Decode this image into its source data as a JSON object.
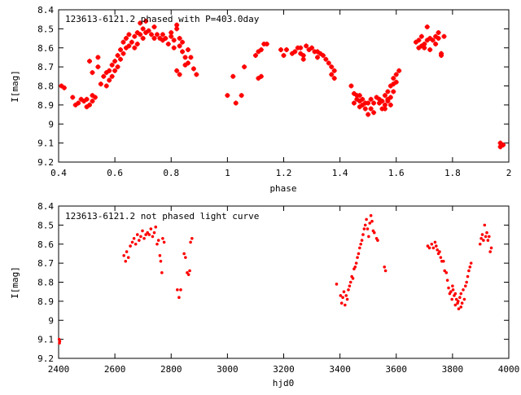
{
  "chart_data": [
    {
      "type": "scatter",
      "annotation": "123613-6121.2 phased with P=403.0day",
      "xlabel": "phase",
      "ylabel": "I[mag]",
      "xlim": [
        0.4,
        2.0
      ],
      "ylim": [
        8.4,
        9.2
      ],
      "y_inverted": true,
      "xticks": [
        "0.4",
        "0.6",
        "0.8",
        "1",
        "1.2",
        "1.4",
        "1.6",
        "1.8",
        "2"
      ],
      "yticks": [
        "8.4",
        "8.5",
        "8.6",
        "8.7",
        "8.8",
        "8.9",
        "9",
        "9.1",
        "9.2"
      ],
      "marker_color": "#ff0000",
      "marker": "plus",
      "points": [
        [
          0.41,
          8.8
        ],
        [
          0.42,
          8.81
        ],
        [
          0.45,
          8.86
        ],
        [
          0.46,
          8.9
        ],
        [
          0.47,
          8.89
        ],
        [
          0.48,
          8.87
        ],
        [
          0.49,
          8.88
        ],
        [
          0.5,
          8.91
        ],
        [
          0.5,
          8.87
        ],
        [
          0.51,
          8.9
        ],
        [
          0.52,
          8.88
        ],
        [
          0.52,
          8.85
        ],
        [
          0.53,
          8.86
        ],
        [
          0.51,
          8.67
        ],
        [
          0.52,
          8.73
        ],
        [
          0.54,
          8.7
        ],
        [
          0.54,
          8.65
        ],
        [
          0.55,
          8.79
        ],
        [
          0.56,
          8.75
        ],
        [
          0.57,
          8.73
        ],
        [
          0.57,
          8.8
        ],
        [
          0.58,
          8.72
        ],
        [
          0.58,
          8.77
        ],
        [
          0.59,
          8.69
        ],
        [
          0.59,
          8.75
        ],
        [
          0.6,
          8.67
        ],
        [
          0.6,
          8.72
        ],
        [
          0.61,
          8.7
        ],
        [
          0.61,
          8.64
        ],
        [
          0.62,
          8.61
        ],
        [
          0.62,
          8.66
        ],
        [
          0.63,
          8.63
        ],
        [
          0.63,
          8.57
        ],
        [
          0.64,
          8.6
        ],
        [
          0.64,
          8.55
        ],
        [
          0.65,
          8.59
        ],
        [
          0.65,
          8.53
        ],
        [
          0.66,
          8.57
        ],
        [
          0.67,
          8.54
        ],
        [
          0.67,
          8.6
        ],
        [
          0.68,
          8.52
        ],
        [
          0.68,
          8.58
        ],
        [
          0.69,
          8.47
        ],
        [
          0.69,
          8.53
        ],
        [
          0.7,
          8.5
        ],
        [
          0.7,
          8.55
        ],
        [
          0.71,
          8.46
        ],
        [
          0.71,
          8.52
        ],
        [
          0.72,
          8.51
        ],
        [
          0.73,
          8.53
        ],
        [
          0.74,
          8.55
        ],
        [
          0.74,
          8.49
        ],
        [
          0.75,
          8.53
        ],
        [
          0.76,
          8.55
        ],
        [
          0.77,
          8.53
        ],
        [
          0.77,
          8.56
        ],
        [
          0.78,
          8.55
        ],
        [
          0.79,
          8.58
        ],
        [
          0.8,
          8.54
        ],
        [
          0.8,
          8.52
        ],
        [
          0.81,
          8.56
        ],
        [
          0.81,
          8.6
        ],
        [
          0.82,
          8.48
        ],
        [
          0.82,
          8.5
        ],
        [
          0.83,
          8.55
        ],
        [
          0.83,
          8.59
        ],
        [
          0.84,
          8.57
        ],
        [
          0.84,
          8.62
        ],
        [
          0.85,
          8.65
        ],
        [
          0.85,
          8.69
        ],
        [
          0.86,
          8.61
        ],
        [
          0.86,
          8.68
        ],
        [
          0.87,
          8.65
        ],
        [
          0.88,
          8.71
        ],
        [
          0.82,
          8.72
        ],
        [
          0.83,
          8.74
        ],
        [
          0.89,
          8.74
        ],
        [
          1.0,
          8.85
        ],
        [
          1.02,
          8.75
        ],
        [
          1.03,
          8.89
        ],
        [
          1.05,
          8.85
        ],
        [
          1.06,
          8.7
        ],
        [
          1.1,
          8.64
        ],
        [
          1.11,
          8.76
        ],
        [
          1.11,
          8.62
        ],
        [
          1.12,
          8.61
        ],
        [
          1.12,
          8.75
        ],
        [
          1.13,
          8.58
        ],
        [
          1.14,
          8.58
        ],
        [
          1.19,
          8.61
        ],
        [
          1.2,
          8.64
        ],
        [
          1.21,
          8.61
        ],
        [
          1.23,
          8.63
        ],
        [
          1.24,
          8.62
        ],
        [
          1.25,
          8.6
        ],
        [
          1.26,
          8.6
        ],
        [
          1.26,
          8.63
        ],
        [
          1.27,
          8.64
        ],
        [
          1.27,
          8.66
        ],
        [
          1.28,
          8.59
        ],
        [
          1.29,
          8.61
        ],
        [
          1.3,
          8.6
        ],
        [
          1.31,
          8.62
        ],
        [
          1.32,
          8.62
        ],
        [
          1.32,
          8.65
        ],
        [
          1.33,
          8.63
        ],
        [
          1.34,
          8.64
        ],
        [
          1.35,
          8.66
        ],
        [
          1.36,
          8.68
        ],
        [
          1.37,
          8.7
        ],
        [
          1.37,
          8.74
        ],
        [
          1.38,
          8.72
        ],
        [
          1.38,
          8.76
        ],
        [
          1.44,
          8.8
        ],
        [
          1.45,
          8.84
        ],
        [
          1.46,
          8.87
        ],
        [
          1.46,
          8.85
        ],
        [
          1.47,
          8.85
        ],
        [
          1.47,
          8.88
        ],
        [
          1.48,
          8.9
        ],
        [
          1.48,
          8.87
        ],
        [
          1.49,
          8.89
        ],
        [
          1.49,
          8.92
        ],
        [
          1.5,
          8.95
        ],
        [
          1.5,
          8.89
        ],
        [
          1.51,
          8.92
        ],
        [
          1.51,
          8.87
        ],
        [
          1.52,
          8.89
        ],
        [
          1.52,
          8.94
        ],
        [
          1.53,
          8.86
        ],
        [
          1.54,
          8.89
        ],
        [
          1.55,
          8.92
        ],
        [
          1.56,
          8.9
        ],
        [
          1.56,
          8.85
        ],
        [
          1.57,
          8.87
        ],
        [
          1.57,
          8.83
        ],
        [
          1.58,
          8.86
        ],
        [
          1.58,
          8.8
        ],
        [
          1.59,
          8.79
        ],
        [
          1.59,
          8.76
        ],
        [
          1.6,
          8.78
        ],
        [
          1.6,
          8.74
        ],
        [
          1.61,
          8.72
        ],
        [
          1.55,
          8.88
        ],
        [
          1.54,
          8.87
        ],
        [
          1.45,
          8.89
        ],
        [
          1.47,
          8.91
        ],
        [
          1.56,
          8.92
        ],
        [
          1.57,
          8.88
        ],
        [
          1.58,
          8.9
        ],
        [
          1.59,
          8.83
        ],
        [
          1.67,
          8.57
        ],
        [
          1.68,
          8.6
        ],
        [
          1.68,
          8.56
        ],
        [
          1.69,
          8.59
        ],
        [
          1.69,
          8.54
        ],
        [
          1.7,
          8.6
        ],
        [
          1.7,
          8.58
        ],
        [
          1.71,
          8.56
        ],
        [
          1.71,
          8.49
        ],
        [
          1.72,
          8.55
        ],
        [
          1.72,
          8.61
        ],
        [
          1.73,
          8.56
        ],
        [
          1.74,
          8.54
        ],
        [
          1.74,
          8.58
        ],
        [
          1.75,
          8.55
        ],
        [
          1.75,
          8.52
        ],
        [
          1.76,
          8.64
        ],
        [
          1.76,
          8.63
        ],
        [
          1.77,
          8.54
        ],
        [
          1.97,
          9.1
        ],
        [
          1.97,
          9.12
        ],
        [
          1.98,
          9.11
        ]
      ]
    },
    {
      "type": "scatter",
      "annotation": "123613-6121.2 not phased light curve",
      "xlabel": "hjd0",
      "ylabel": "I[mag]",
      "xlim": [
        2400,
        4000
      ],
      "ylim": [
        8.4,
        9.2
      ],
      "y_inverted": true,
      "xticks": [
        "2400",
        "2600",
        "2800",
        "3000",
        "3200",
        "3400",
        "3600",
        "3800",
        "4000"
      ],
      "yticks": [
        "8.4",
        "8.5",
        "8.6",
        "8.7",
        "8.8",
        "8.9",
        "9",
        "9.1",
        "9.2"
      ],
      "marker_color": "#ff0000",
      "marker": "dot",
      "points": [
        [
          2402,
          9.1
        ],
        [
          2403,
          9.12
        ],
        [
          2404,
          9.11
        ],
        [
          2632,
          8.66
        ],
        [
          2638,
          8.69
        ],
        [
          2642,
          8.64
        ],
        [
          2648,
          8.67
        ],
        [
          2655,
          8.61
        ],
        [
          2662,
          8.59
        ],
        [
          2668,
          8.57
        ],
        [
          2674,
          8.6
        ],
        [
          2680,
          8.55
        ],
        [
          2686,
          8.58
        ],
        [
          2692,
          8.56
        ],
        [
          2698,
          8.53
        ],
        [
          2704,
          8.57
        ],
        [
          2710,
          8.55
        ],
        [
          2716,
          8.54
        ],
        [
          2722,
          8.55
        ],
        [
          2728,
          8.52
        ],
        [
          2734,
          8.56
        ],
        [
          2740,
          8.54
        ],
        [
          2745,
          8.51
        ],
        [
          2750,
          8.6
        ],
        [
          2755,
          8.58
        ],
        [
          2760,
          8.66
        ],
        [
          2763,
          8.69
        ],
        [
          2767,
          8.75
        ],
        [
          2770,
          8.57
        ],
        [
          2775,
          8.59
        ],
        [
          2822,
          8.84
        ],
        [
          2828,
          8.88
        ],
        [
          2834,
          8.84
        ],
        [
          2846,
          8.65
        ],
        [
          2851,
          8.67
        ],
        [
          2857,
          8.75
        ],
        [
          2862,
          8.76
        ],
        [
          2866,
          8.74
        ],
        [
          2869,
          8.59
        ],
        [
          2874,
          8.57
        ],
        [
          3388,
          8.81
        ],
        [
          3402,
          8.87
        ],
        [
          3406,
          8.91
        ],
        [
          3410,
          8.88
        ],
        [
          3414,
          8.85
        ],
        [
          3418,
          8.92
        ],
        [
          3422,
          8.87
        ],
        [
          3426,
          8.89
        ],
        [
          3430,
          8.84
        ],
        [
          3434,
          8.82
        ],
        [
          3438,
          8.8
        ],
        [
          3442,
          8.77
        ],
        [
          3446,
          8.78
        ],
        [
          3450,
          8.73
        ],
        [
          3454,
          8.72
        ],
        [
          3458,
          8.7
        ],
        [
          3462,
          8.67
        ],
        [
          3466,
          8.65
        ],
        [
          3470,
          8.62
        ],
        [
          3474,
          8.6
        ],
        [
          3478,
          8.58
        ],
        [
          3482,
          8.55
        ],
        [
          3486,
          8.52
        ],
        [
          3490,
          8.5
        ],
        [
          3494,
          8.47
        ],
        [
          3498,
          8.52
        ],
        [
          3502,
          8.56
        ],
        [
          3506,
          8.49
        ],
        [
          3510,
          8.45
        ],
        [
          3514,
          8.48
        ],
        [
          3518,
          8.53
        ],
        [
          3522,
          8.54
        ],
        [
          3530,
          8.57
        ],
        [
          3534,
          8.58
        ],
        [
          3558,
          8.72
        ],
        [
          3562,
          8.74
        ],
        [
          3712,
          8.61
        ],
        [
          3718,
          8.62
        ],
        [
          3726,
          8.6
        ],
        [
          3732,
          8.62
        ],
        [
          3738,
          8.59
        ],
        [
          3742,
          8.61
        ],
        [
          3746,
          8.63
        ],
        [
          3750,
          8.65
        ],
        [
          3754,
          8.64
        ],
        [
          3758,
          8.67
        ],
        [
          3762,
          8.69
        ],
        [
          3768,
          8.69
        ],
        [
          3772,
          8.74
        ],
        [
          3778,
          8.75
        ],
        [
          3782,
          8.79
        ],
        [
          3786,
          8.83
        ],
        [
          3790,
          8.86
        ],
        [
          3794,
          8.85
        ],
        [
          3798,
          8.89
        ],
        [
          3802,
          8.84
        ],
        [
          3806,
          8.87
        ],
        [
          3810,
          8.92
        ],
        [
          3814,
          8.89
        ],
        [
          3818,
          8.91
        ],
        [
          3822,
          8.94
        ],
        [
          3826,
          8.88
        ],
        [
          3830,
          8.86
        ],
        [
          3834,
          8.91
        ],
        [
          3838,
          8.84
        ],
        [
          3842,
          8.89
        ],
        [
          3846,
          8.82
        ],
        [
          3850,
          8.8
        ],
        [
          3854,
          8.77
        ],
        [
          3858,
          8.74
        ],
        [
          3862,
          8.72
        ],
        [
          3866,
          8.7
        ],
        [
          3810,
          8.86
        ],
        [
          3800,
          8.82
        ],
        [
          3820,
          8.9
        ],
        [
          3830,
          8.93
        ],
        [
          3898,
          8.6
        ],
        [
          3902,
          8.57
        ],
        [
          3906,
          8.55
        ],
        [
          3910,
          8.58
        ],
        [
          3914,
          8.5
        ],
        [
          3918,
          8.56
        ],
        [
          3922,
          8.54
        ],
        [
          3926,
          8.58
        ],
        [
          3930,
          8.56
        ],
        [
          3934,
          8.64
        ],
        [
          3938,
          8.62
        ]
      ]
    }
  ]
}
